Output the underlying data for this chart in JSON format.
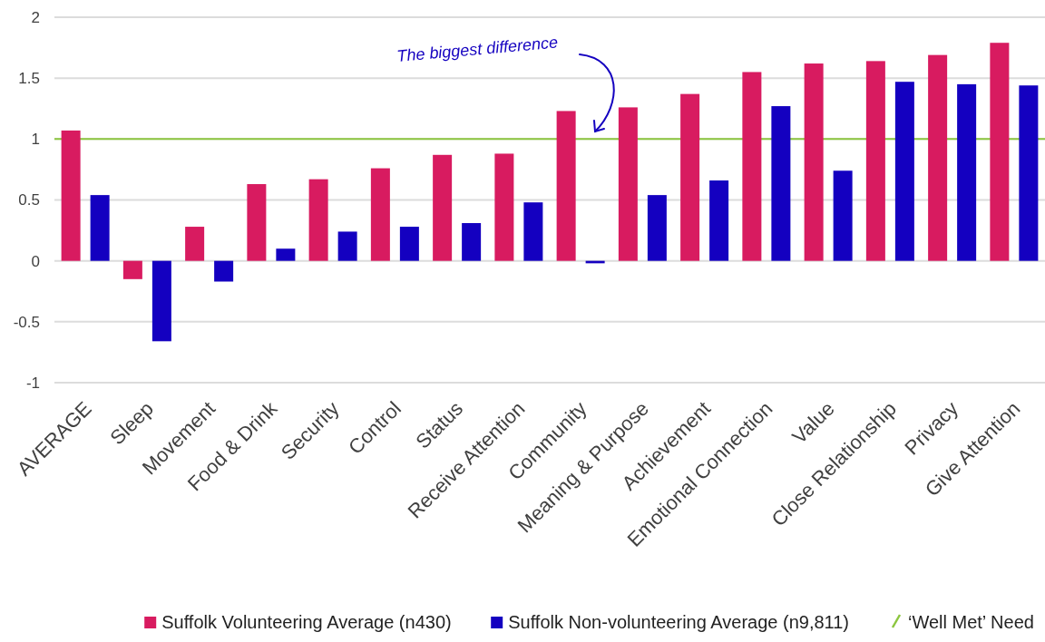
{
  "chart_data": {
    "type": "bar",
    "categories": [
      "AVERAGE",
      "Sleep",
      "Movement",
      "Food & Drink",
      "Security",
      "Control",
      "Status",
      "Receive Attention",
      "Community",
      "Meaning & Purpose",
      "Achievement",
      "Emotional Connection",
      "Value",
      "Close Relationship",
      "Privacy",
      "Give Attention"
    ],
    "series": [
      {
        "name": "Suffolk Volunteering Average (n430)",
        "color": "#d81b60",
        "values": [
          1.07,
          -0.15,
          0.28,
          0.63,
          0.67,
          0.76,
          0.87,
          0.88,
          1.23,
          1.26,
          1.37,
          1.55,
          1.62,
          1.64,
          1.69,
          1.79
        ]
      },
      {
        "name": "Suffolk Non-volunteering Average (n9,811)",
        "color": "#1400c0",
        "values": [
          0.54,
          -0.66,
          -0.17,
          0.1,
          0.24,
          0.28,
          0.31,
          0.48,
          -0.02,
          0.54,
          0.66,
          1.27,
          0.74,
          1.47,
          1.45,
          1.44
        ]
      }
    ],
    "ylim": [
      -1,
      2
    ],
    "yticks": [
      -1,
      -0.5,
      0,
      0.5,
      1,
      1.5,
      2
    ],
    "grid": "y",
    "legend": "bottom",
    "ref_lines": [
      {
        "axis": "y",
        "value": 1,
        "label": "‘Well Met’ Need",
        "color": "#8cc63f"
      }
    ],
    "annotations": [
      "The biggest difference"
    ]
  }
}
